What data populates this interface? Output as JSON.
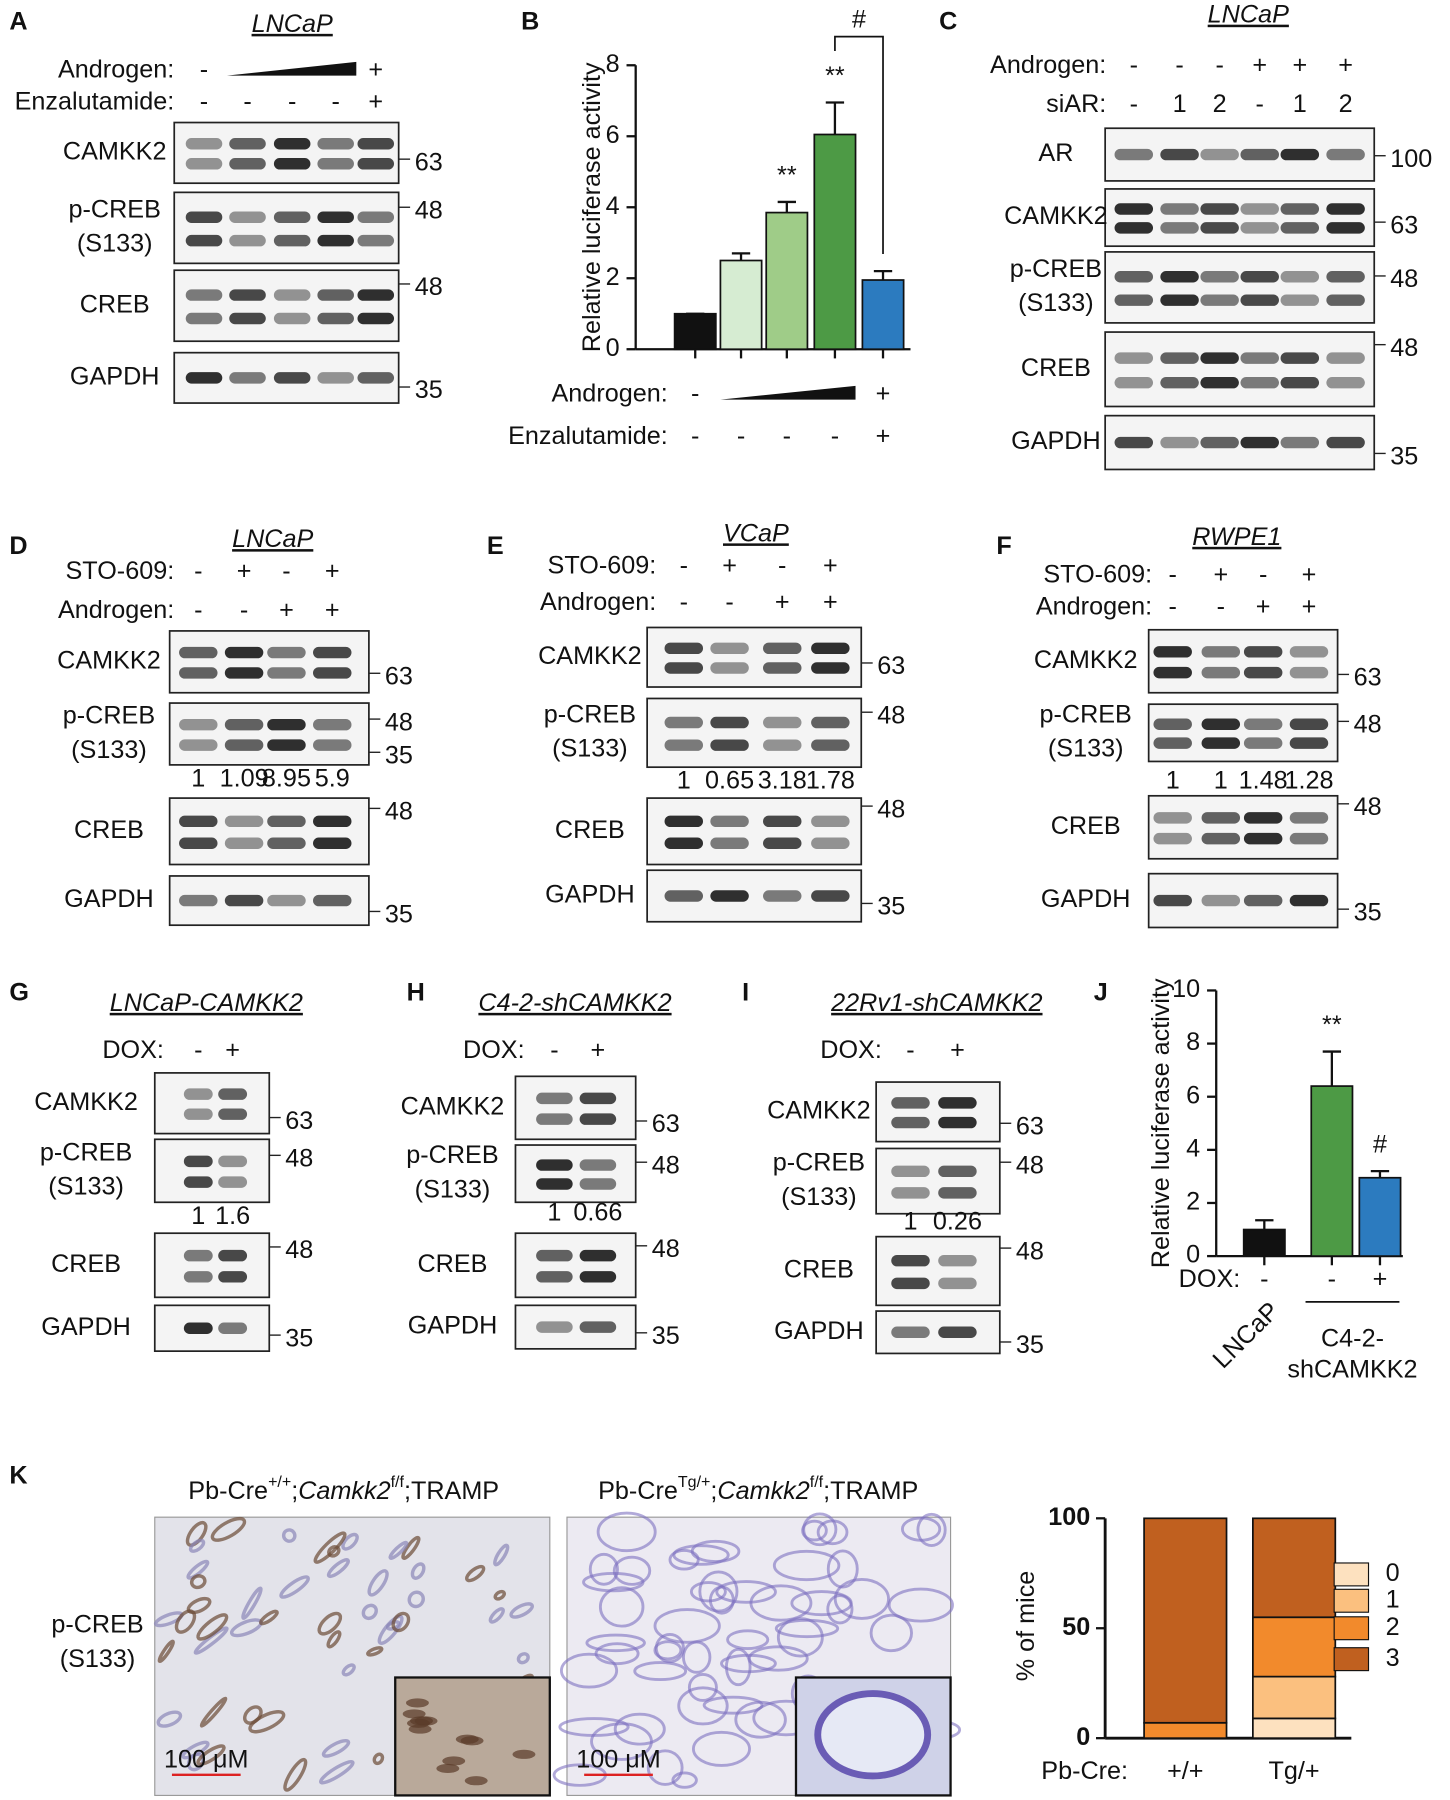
{
  "blot_panels": [
    {
      "letter": "A",
      "title": "LNCaP",
      "rows": [
        {
          "label": "Androgen:",
          "marks": [
            "-",
            "+"
          ]
        },
        {
          "label": "Enzalutamide:",
          "marks": [
            "-",
            "-",
            "-",
            "-",
            "+"
          ]
        }
      ],
      "blots": [
        {
          "label": [
            "CAMKK2"
          ],
          "mw": [
            63
          ]
        },
        {
          "label": [
            "p-CREB",
            "(S133)"
          ],
          "mw": [
            48
          ]
        },
        {
          "label": [
            "CREB"
          ],
          "mw": [
            48
          ]
        },
        {
          "label": [
            "GAPDH"
          ],
          "mw": [
            35
          ]
        }
      ]
    },
    {
      "letter": "C",
      "title": "LNCaP",
      "rows": [
        {
          "label": "Androgen:",
          "marks": [
            "-",
            "-",
            "-",
            "+",
            "+",
            "+"
          ]
        },
        {
          "label": "siAR:",
          "marks": [
            "-",
            "1",
            "2",
            "-",
            "1",
            "2"
          ]
        }
      ],
      "blots": [
        {
          "label": [
            "AR"
          ],
          "mw": [
            100
          ]
        },
        {
          "label": [
            "CAMKK2"
          ],
          "mw": [
            63
          ]
        },
        {
          "label": [
            "p-CREB",
            "(S133)"
          ],
          "mw": [
            48
          ]
        },
        {
          "label": [
            "CREB"
          ],
          "mw": [
            48
          ]
        },
        {
          "label": [
            "GAPDH"
          ],
          "mw": [
            35
          ]
        }
      ]
    },
    {
      "letter": "D",
      "title": "LNCaP",
      "rows": [
        {
          "label": "STO-609:",
          "marks": [
            "-",
            "+",
            "-",
            "+"
          ]
        },
        {
          "label": "Androgen:",
          "marks": [
            "-",
            "-",
            "+",
            "+"
          ]
        }
      ],
      "blots": [
        {
          "label": [
            "CAMKK2"
          ],
          "mw": [
            63
          ]
        },
        {
          "label": [
            "p-CREB",
            "(S133)"
          ],
          "mw": [
            48,
            35
          ]
        },
        {
          "label": [
            "CREB"
          ],
          "mw": [
            48
          ]
        },
        {
          "label": [
            "GAPDH"
          ],
          "mw": [
            35
          ]
        }
      ],
      "quant": [
        1,
        1.09,
        8.95,
        5.9
      ]
    },
    {
      "letter": "E",
      "title": "VCaP",
      "rows": [
        {
          "label": "STO-609:",
          "marks": [
            "-",
            "+",
            "-",
            "+"
          ]
        },
        {
          "label": "Androgen:",
          "marks": [
            "-",
            "-",
            "+",
            "+"
          ]
        }
      ],
      "blots": [
        {
          "label": [
            "CAMKK2"
          ],
          "mw": [
            63
          ]
        },
        {
          "label": [
            "p-CREB",
            "(S133)"
          ],
          "mw": [
            48
          ]
        },
        {
          "label": [
            "CREB"
          ],
          "mw": [
            48
          ]
        },
        {
          "label": [
            "GAPDH"
          ],
          "mw": [
            35
          ]
        }
      ],
      "quant": [
        1,
        0.65,
        3.18,
        1.78
      ]
    },
    {
      "letter": "F",
      "title": "RWPE1",
      "rows": [
        {
          "label": "STO-609:",
          "marks": [
            "-",
            "+",
            "-",
            "+"
          ]
        },
        {
          "label": "Androgen:",
          "marks": [
            "-",
            "-",
            "+",
            "+"
          ]
        }
      ],
      "blots": [
        {
          "label": [
            "CAMKK2"
          ],
          "mw": [
            63
          ]
        },
        {
          "label": [
            "p-CREB",
            "(S133)"
          ],
          "mw": [
            48
          ]
        },
        {
          "label": [
            "CREB"
          ],
          "mw": [
            48
          ]
        },
        {
          "label": [
            "GAPDH"
          ],
          "mw": [
            35
          ]
        }
      ],
      "quant": [
        1,
        1,
        1.48,
        1.28
      ]
    },
    {
      "letter": "G",
      "title": "LNCaP-CAMKK2",
      "rows": [
        {
          "label": "DOX:",
          "marks": [
            "-",
            "+"
          ]
        }
      ],
      "blots": [
        {
          "label": [
            "CAMKK2"
          ],
          "mw": [
            63
          ]
        },
        {
          "label": [
            "p-CREB",
            "(S133)"
          ],
          "mw": [
            48
          ]
        },
        {
          "label": [
            "CREB"
          ],
          "mw": [
            48
          ]
        },
        {
          "label": [
            "GAPDH"
          ],
          "mw": [
            35
          ]
        }
      ],
      "quant": [
        1,
        1.6
      ]
    },
    {
      "letter": "H",
      "title": "C4-2-shCAMKK2",
      "rows": [
        {
          "label": "DOX:",
          "marks": [
            "-",
            "+"
          ]
        }
      ],
      "blots": [
        {
          "label": [
            "CAMKK2"
          ],
          "mw": [
            63
          ]
        },
        {
          "label": [
            "p-CREB",
            "(S133)"
          ],
          "mw": [
            48
          ]
        },
        {
          "label": [
            "CREB"
          ],
          "mw": [
            48
          ]
        },
        {
          "label": [
            "GAPDH"
          ],
          "mw": [
            35
          ]
        }
      ],
      "quant": [
        1,
        0.66
      ]
    },
    {
      "letter": "I",
      "title": "22Rv1-shCAMKK2",
      "rows": [
        {
          "label": "DOX:",
          "marks": [
            "-",
            "+"
          ]
        }
      ],
      "blots": [
        {
          "label": [
            "CAMKK2"
          ],
          "mw": [
            63
          ]
        },
        {
          "label": [
            "p-CREB",
            "(S133)"
          ],
          "mw": [
            48
          ]
        },
        {
          "label": [
            "CREB"
          ],
          "mw": [
            48
          ]
        },
        {
          "label": [
            "GAPDH"
          ],
          "mw": [
            35
          ]
        }
      ],
      "quant": [
        1,
        0.26
      ]
    }
  ],
  "chart_data": [
    {
      "type": "bar",
      "letter": "B",
      "y_label": "Relative luciferase activity",
      "values": [
        1,
        2.5,
        3.85,
        6.05,
        1.95
      ],
      "errors": [
        0,
        0.2,
        0.3,
        0.9,
        0.25
      ],
      "colors": [
        "#111111",
        "#d6ecd2",
        "#9fcc88",
        "#4d9a45",
        "#2c7bbf"
      ],
      "annotations": [
        null,
        null,
        "**",
        "**",
        null
      ],
      "bracket_label": "#",
      "ylim": [
        0,
        8
      ],
      "yticks": [
        0,
        2,
        4,
        6,
        8
      ],
      "rows": [
        {
          "label": "Androgen:",
          "marks": [
            "-",
            "+"
          ]
        },
        {
          "label": "Enzalutamide:",
          "marks": [
            "-",
            "-",
            "-",
            "-",
            "+"
          ]
        }
      ]
    },
    {
      "type": "bar",
      "letter": "J",
      "y_label": "Relative luciferase activity",
      "values": [
        1,
        6.4,
        2.95
      ],
      "errors": [
        0.35,
        1.3,
        0.25
      ],
      "colors": [
        "#111111",
        "#4d9a45",
        "#2c7bbf"
      ],
      "annotations": [
        null,
        "**",
        "#"
      ],
      "ylim": [
        0,
        10
      ],
      "yticks": [
        0,
        2,
        4,
        6,
        8,
        10
      ],
      "rows": [
        {
          "label": "DOX:",
          "marks": [
            "-",
            "-",
            "+"
          ]
        }
      ],
      "groups": [
        [
          "LNCaP"
        ],
        [
          "C4-2-",
          "shCAMKK2"
        ]
      ]
    },
    {
      "type": "stacked_bar",
      "letter": "K",
      "y_label": "% of mice",
      "x_label": "Pb-Cre:",
      "categories": [
        "+/+",
        "Tg/+"
      ],
      "series": [
        {
          "name": "0",
          "color": "#fde1bf",
          "values": [
            0,
            9
          ]
        },
        {
          "name": "1",
          "color": "#fbc07f",
          "values": [
            0,
            19
          ]
        },
        {
          "name": "2",
          "color": "#f28a2c",
          "values": [
            7,
            27
          ]
        },
        {
          "name": "3",
          "color": "#c0601f",
          "values": [
            93,
            45
          ]
        }
      ],
      "ylim": [
        0,
        100
      ],
      "yticks": [
        0,
        50,
        100
      ],
      "row_label": [
        "p-CREB",
        "(S133)"
      ],
      "images": [
        {
          "title": [
            "Pb-Cre",
            "+/+",
            ";",
            "Camkk2",
            "f/f",
            ";TRAMP"
          ],
          "scale_bar": "100 μM"
        },
        {
          "title": [
            "Pb-Cre",
            "Tg/+",
            ";",
            "Camkk2",
            "f/f",
            ";TRAMP"
          ],
          "scale_bar": "100 μM"
        }
      ]
    }
  ]
}
